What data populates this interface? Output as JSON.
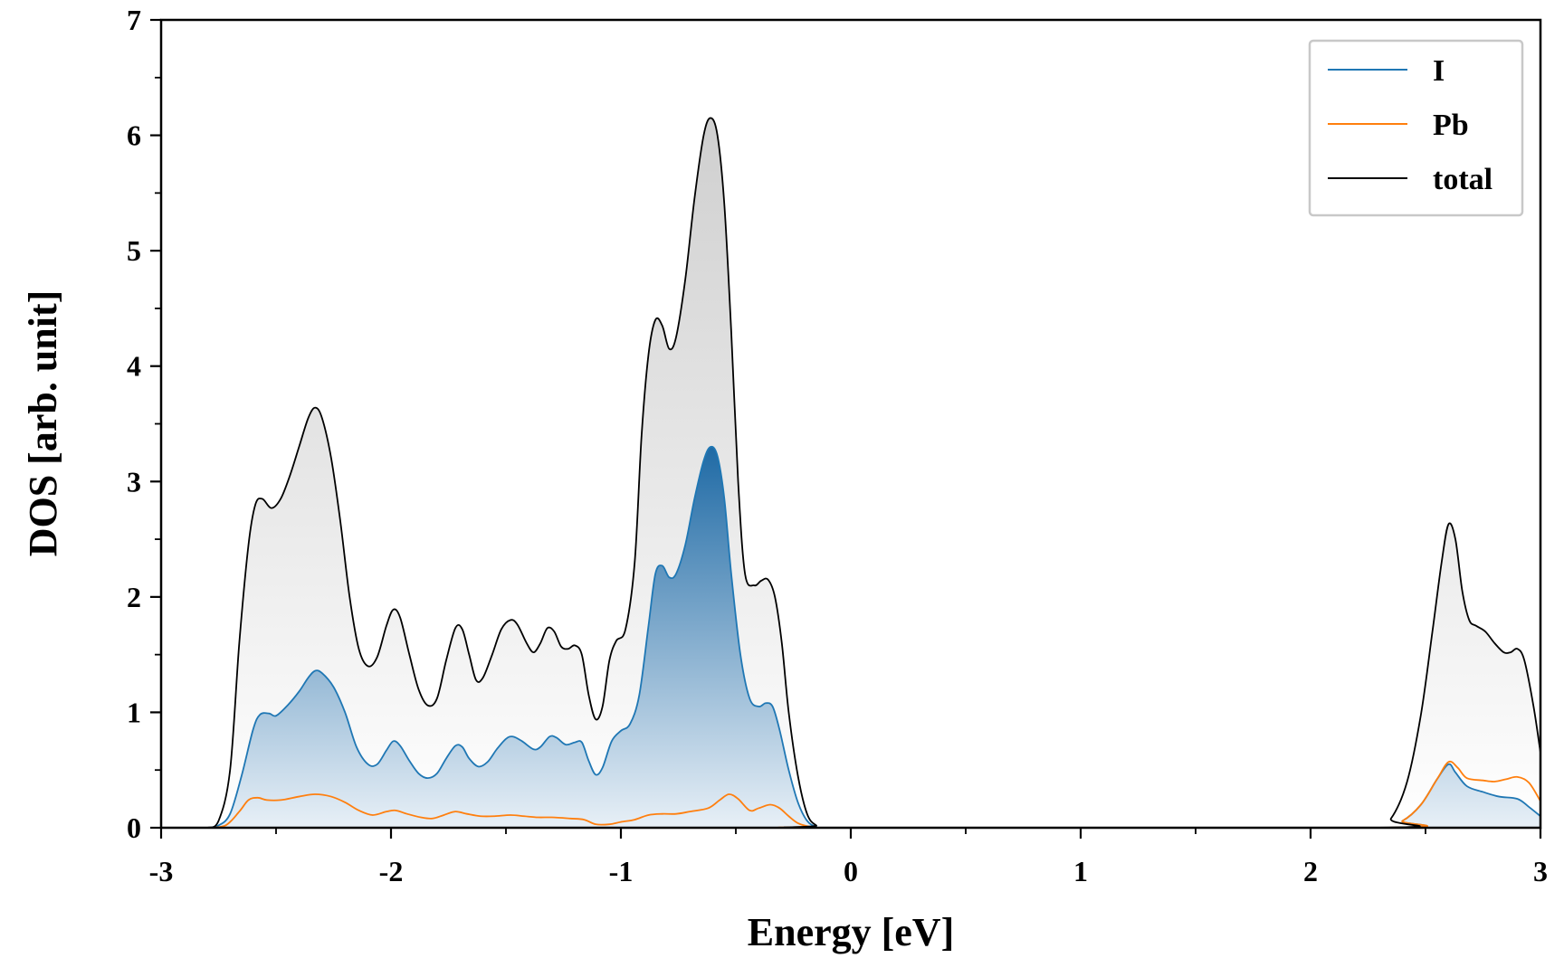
{
  "chart_data": {
    "type": "line",
    "title": "",
    "xlabel": "Energy [eV]",
    "ylabel": "DOS [arb. unit]",
    "xlim": [
      -3,
      3
    ],
    "ylim": [
      0,
      7
    ],
    "xticks": [
      "-3",
      "-2",
      "-1",
      "0",
      "1",
      "2",
      "3"
    ],
    "yticks": [
      "0",
      "1",
      "2",
      "3",
      "4",
      "5",
      "6",
      "7"
    ],
    "grid": false,
    "legend_position": "top-right",
    "series": [
      {
        "name": "I",
        "color": "#1f77b4",
        "filled": true,
        "points": [
          [
            -2.8,
            0.0
          ],
          [
            -2.75,
            0.02
          ],
          [
            -2.7,
            0.12
          ],
          [
            -2.65,
            0.45
          ],
          [
            -2.6,
            0.85
          ],
          [
            -2.57,
            0.98
          ],
          [
            -2.53,
            0.99
          ],
          [
            -2.5,
            0.97
          ],
          [
            -2.45,
            1.06
          ],
          [
            -2.4,
            1.18
          ],
          [
            -2.36,
            1.3
          ],
          [
            -2.33,
            1.36
          ],
          [
            -2.3,
            1.34
          ],
          [
            -2.25,
            1.22
          ],
          [
            -2.2,
            1.0
          ],
          [
            -2.15,
            0.7
          ],
          [
            -2.1,
            0.55
          ],
          [
            -2.06,
            0.55
          ],
          [
            -2.02,
            0.67
          ],
          [
            -1.99,
            0.75
          ],
          [
            -1.96,
            0.71
          ],
          [
            -1.92,
            0.58
          ],
          [
            -1.88,
            0.47
          ],
          [
            -1.84,
            0.43
          ],
          [
            -1.8,
            0.47
          ],
          [
            -1.76,
            0.6
          ],
          [
            -1.72,
            0.71
          ],
          [
            -1.69,
            0.7
          ],
          [
            -1.66,
            0.6
          ],
          [
            -1.62,
            0.53
          ],
          [
            -1.58,
            0.57
          ],
          [
            -1.54,
            0.68
          ],
          [
            -1.5,
            0.77
          ],
          [
            -1.47,
            0.79
          ],
          [
            -1.43,
            0.75
          ],
          [
            -1.38,
            0.68
          ],
          [
            -1.35,
            0.7
          ],
          [
            -1.31,
            0.79
          ],
          [
            -1.28,
            0.78
          ],
          [
            -1.24,
            0.72
          ],
          [
            -1.2,
            0.74
          ],
          [
            -1.17,
            0.74
          ],
          [
            -1.14,
            0.58
          ],
          [
            -1.11,
            0.46
          ],
          [
            -1.08,
            0.52
          ],
          [
            -1.04,
            0.75
          ],
          [
            -1.0,
            0.84
          ],
          [
            -0.96,
            0.9
          ],
          [
            -0.92,
            1.15
          ],
          [
            -0.88,
            1.75
          ],
          [
            -0.85,
            2.2
          ],
          [
            -0.82,
            2.27
          ],
          [
            -0.79,
            2.17
          ],
          [
            -0.76,
            2.2
          ],
          [
            -0.72,
            2.45
          ],
          [
            -0.68,
            2.85
          ],
          [
            -0.64,
            3.18
          ],
          [
            -0.61,
            3.3
          ],
          [
            -0.58,
            3.22
          ],
          [
            -0.55,
            2.85
          ],
          [
            -0.52,
            2.2
          ],
          [
            -0.48,
            1.5
          ],
          [
            -0.44,
            1.12
          ],
          [
            -0.4,
            1.05
          ],
          [
            -0.37,
            1.08
          ],
          [
            -0.34,
            1.05
          ],
          [
            -0.31,
            0.85
          ],
          [
            -0.27,
            0.5
          ],
          [
            -0.23,
            0.22
          ],
          [
            -0.19,
            0.06
          ],
          [
            -0.15,
            0.01
          ],
          [
            -0.1,
            0.0
          ],
          [
            2.3,
            0.0
          ],
          [
            2.4,
            0.06
          ],
          [
            2.48,
            0.2
          ],
          [
            2.55,
            0.42
          ],
          [
            2.6,
            0.55
          ],
          [
            2.63,
            0.48
          ],
          [
            2.68,
            0.36
          ],
          [
            2.75,
            0.31
          ],
          [
            2.82,
            0.27
          ],
          [
            2.9,
            0.25
          ],
          [
            2.95,
            0.18
          ],
          [
            3.0,
            0.1
          ]
        ]
      },
      {
        "name": "Pb",
        "color": "#ff7f0e",
        "filled": false,
        "points": [
          [
            -2.8,
            0.0
          ],
          [
            -2.72,
            0.02
          ],
          [
            -2.66,
            0.14
          ],
          [
            -2.62,
            0.24
          ],
          [
            -2.58,
            0.26
          ],
          [
            -2.54,
            0.24
          ],
          [
            -2.48,
            0.24
          ],
          [
            -2.4,
            0.27
          ],
          [
            -2.33,
            0.29
          ],
          [
            -2.26,
            0.27
          ],
          [
            -2.2,
            0.22
          ],
          [
            -2.14,
            0.15
          ],
          [
            -2.08,
            0.11
          ],
          [
            -2.02,
            0.14
          ],
          [
            -1.98,
            0.15
          ],
          [
            -1.93,
            0.12
          ],
          [
            -1.87,
            0.09
          ],
          [
            -1.82,
            0.08
          ],
          [
            -1.77,
            0.11
          ],
          [
            -1.72,
            0.14
          ],
          [
            -1.67,
            0.12
          ],
          [
            -1.61,
            0.1
          ],
          [
            -1.55,
            0.1
          ],
          [
            -1.48,
            0.11
          ],
          [
            -1.42,
            0.1
          ],
          [
            -1.36,
            0.09
          ],
          [
            -1.3,
            0.09
          ],
          [
            -1.22,
            0.08
          ],
          [
            -1.16,
            0.07
          ],
          [
            -1.11,
            0.03
          ],
          [
            -1.05,
            0.03
          ],
          [
            -1.0,
            0.05
          ],
          [
            -0.94,
            0.07
          ],
          [
            -0.88,
            0.11
          ],
          [
            -0.82,
            0.12
          ],
          [
            -0.76,
            0.12
          ],
          [
            -0.7,
            0.14
          ],
          [
            -0.62,
            0.17
          ],
          [
            -0.57,
            0.24
          ],
          [
            -0.53,
            0.29
          ],
          [
            -0.49,
            0.25
          ],
          [
            -0.44,
            0.15
          ],
          [
            -0.4,
            0.17
          ],
          [
            -0.35,
            0.2
          ],
          [
            -0.31,
            0.17
          ],
          [
            -0.27,
            0.1
          ],
          [
            -0.23,
            0.04
          ],
          [
            -0.18,
            0.01
          ],
          [
            -0.12,
            0.0
          ],
          [
            2.3,
            0.0
          ],
          [
            2.4,
            0.06
          ],
          [
            2.48,
            0.2
          ],
          [
            2.55,
            0.42
          ],
          [
            2.6,
            0.57
          ],
          [
            2.64,
            0.52
          ],
          [
            2.68,
            0.43
          ],
          [
            2.75,
            0.41
          ],
          [
            2.8,
            0.4
          ],
          [
            2.85,
            0.42
          ],
          [
            2.9,
            0.44
          ],
          [
            2.95,
            0.39
          ],
          [
            3.0,
            0.23
          ]
        ]
      },
      {
        "name": "total",
        "color": "#000000",
        "filled": true,
        "points": [
          [
            -2.8,
            0.0
          ],
          [
            -2.75,
            0.06
          ],
          [
            -2.7,
            0.5
          ],
          [
            -2.66,
            1.6
          ],
          [
            -2.62,
            2.45
          ],
          [
            -2.59,
            2.8
          ],
          [
            -2.56,
            2.85
          ],
          [
            -2.52,
            2.77
          ],
          [
            -2.48,
            2.85
          ],
          [
            -2.44,
            3.05
          ],
          [
            -2.4,
            3.3
          ],
          [
            -2.36,
            3.55
          ],
          [
            -2.33,
            3.64
          ],
          [
            -2.3,
            3.55
          ],
          [
            -2.26,
            3.2
          ],
          [
            -2.22,
            2.65
          ],
          [
            -2.18,
            2.0
          ],
          [
            -2.14,
            1.55
          ],
          [
            -2.1,
            1.4
          ],
          [
            -2.06,
            1.48
          ],
          [
            -2.02,
            1.75
          ],
          [
            -1.99,
            1.89
          ],
          [
            -1.96,
            1.82
          ],
          [
            -1.92,
            1.5
          ],
          [
            -1.88,
            1.2
          ],
          [
            -1.84,
            1.06
          ],
          [
            -1.8,
            1.12
          ],
          [
            -1.76,
            1.45
          ],
          [
            -1.72,
            1.73
          ],
          [
            -1.69,
            1.72
          ],
          [
            -1.66,
            1.5
          ],
          [
            -1.63,
            1.28
          ],
          [
            -1.6,
            1.3
          ],
          [
            -1.56,
            1.5
          ],
          [
            -1.52,
            1.72
          ],
          [
            -1.48,
            1.8
          ],
          [
            -1.45,
            1.76
          ],
          [
            -1.41,
            1.6
          ],
          [
            -1.38,
            1.52
          ],
          [
            -1.35,
            1.6
          ],
          [
            -1.32,
            1.73
          ],
          [
            -1.29,
            1.7
          ],
          [
            -1.26,
            1.57
          ],
          [
            -1.23,
            1.55
          ],
          [
            -1.2,
            1.58
          ],
          [
            -1.17,
            1.5
          ],
          [
            -1.14,
            1.15
          ],
          [
            -1.11,
            0.94
          ],
          [
            -1.08,
            1.05
          ],
          [
            -1.05,
            1.45
          ],
          [
            -1.02,
            1.62
          ],
          [
            -0.98,
            1.72
          ],
          [
            -0.94,
            2.3
          ],
          [
            -0.91,
            3.4
          ],
          [
            -0.88,
            4.1
          ],
          [
            -0.85,
            4.4
          ],
          [
            -0.82,
            4.35
          ],
          [
            -0.79,
            4.15
          ],
          [
            -0.76,
            4.25
          ],
          [
            -0.72,
            4.75
          ],
          [
            -0.68,
            5.45
          ],
          [
            -0.64,
            6.0
          ],
          [
            -0.61,
            6.15
          ],
          [
            -0.58,
            6.0
          ],
          [
            -0.55,
            5.4
          ],
          [
            -0.52,
            4.3
          ],
          [
            -0.49,
            3.0
          ],
          [
            -0.46,
            2.2
          ],
          [
            -0.42,
            2.1
          ],
          [
            -0.39,
            2.14
          ],
          [
            -0.36,
            2.15
          ],
          [
            -0.33,
            2.0
          ],
          [
            -0.3,
            1.6
          ],
          [
            -0.27,
            1.0
          ],
          [
            -0.23,
            0.45
          ],
          [
            -0.19,
            0.12
          ],
          [
            -0.15,
            0.02
          ],
          [
            -0.1,
            0.0
          ],
          [
            2.28,
            0.0
          ],
          [
            2.35,
            0.08
          ],
          [
            2.42,
            0.4
          ],
          [
            2.48,
            0.98
          ],
          [
            2.53,
            1.7
          ],
          [
            2.57,
            2.3
          ],
          [
            2.6,
            2.63
          ],
          [
            2.63,
            2.5
          ],
          [
            2.66,
            2.05
          ],
          [
            2.69,
            1.8
          ],
          [
            2.72,
            1.75
          ],
          [
            2.76,
            1.7
          ],
          [
            2.8,
            1.6
          ],
          [
            2.84,
            1.52
          ],
          [
            2.87,
            1.52
          ],
          [
            2.9,
            1.55
          ],
          [
            2.93,
            1.45
          ],
          [
            2.97,
            1.05
          ],
          [
            3.0,
            0.65
          ]
        ]
      }
    ]
  }
}
